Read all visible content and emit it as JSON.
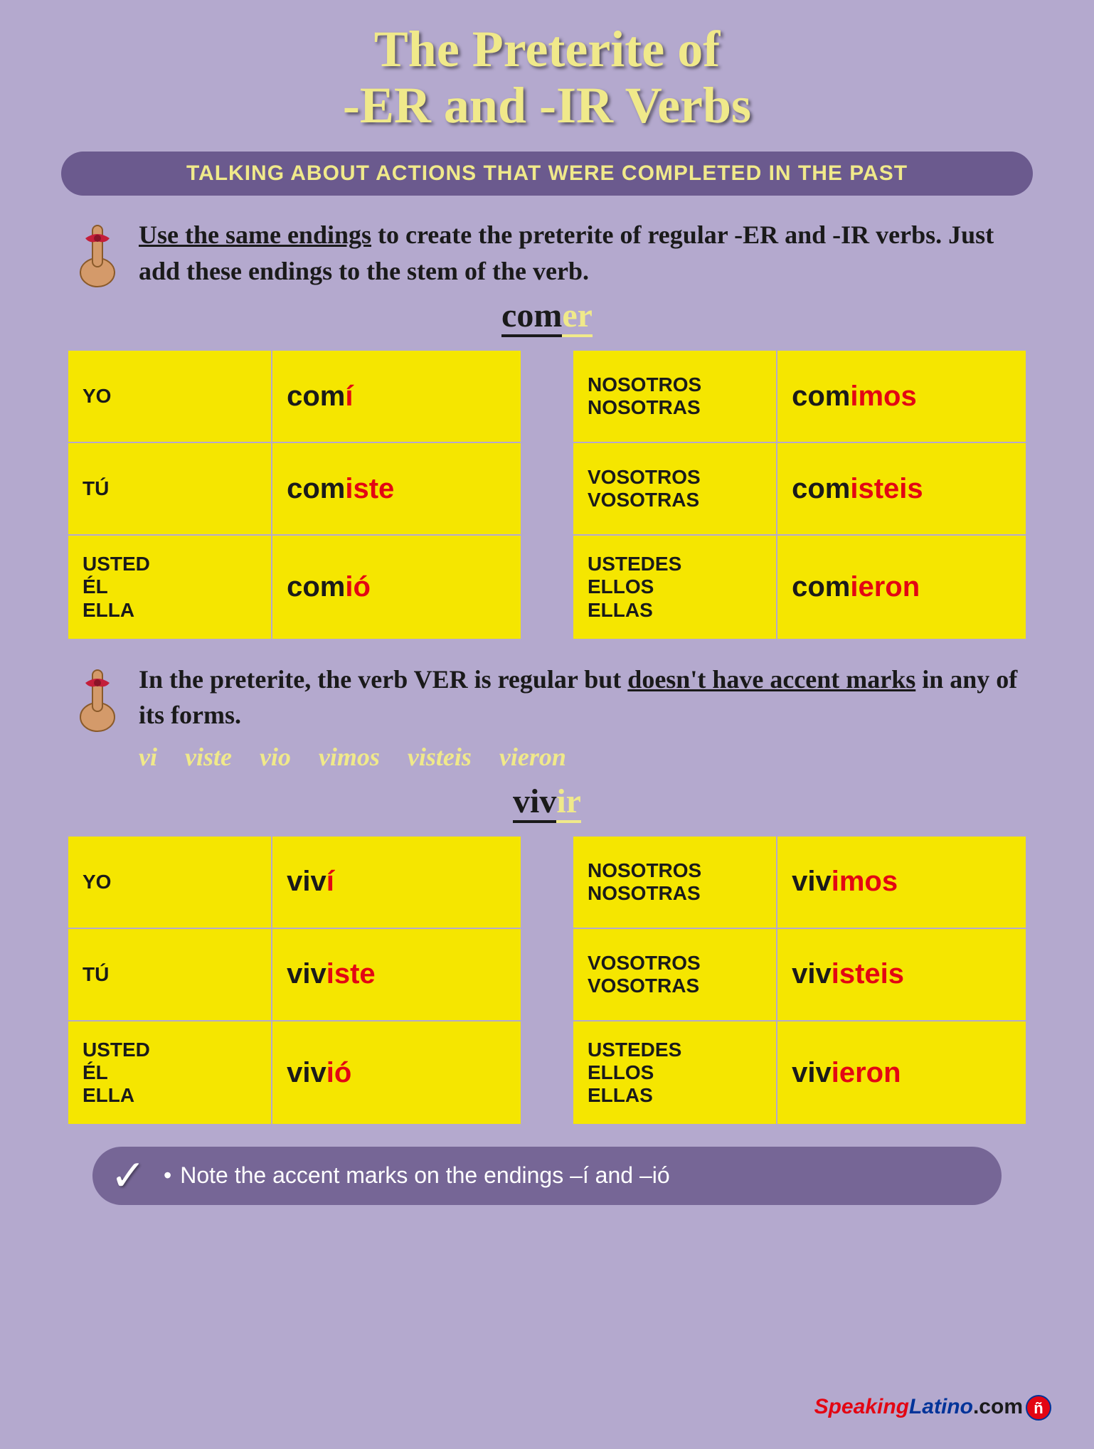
{
  "title_line1": "The Preterite of",
  "title_line2": "-ER and -IR Verbs",
  "subtitle": "TALKING ABOUT ACTIONS THAT WERE COMPLETED IN THE PAST",
  "tip1": {
    "underlined": "Use the same endings",
    "rest": " to create the preterite of regular -ER and -IR verbs. Just add these endings to the stem of the verb."
  },
  "verb1": {
    "stem": "com",
    "ending": "er"
  },
  "verb2": {
    "stem": "viv",
    "ending": "ir"
  },
  "pronouns_singular": [
    "YO",
    "TÚ",
    "USTED\nÉL\nELLA"
  ],
  "pronouns_plural": [
    "NOSOTROS\nNOSOTRAS",
    "VOSOTROS\nVOSOTRAS",
    "USTEDES\nELLOS\nELLAS"
  ],
  "comer_sg": [
    {
      "stem": "com",
      "end": "í"
    },
    {
      "stem": "com",
      "end": "iste"
    },
    {
      "stem": "com",
      "end": "ió"
    }
  ],
  "comer_pl": [
    {
      "stem": "com",
      "end": "imos"
    },
    {
      "stem": "com",
      "end": "isteis"
    },
    {
      "stem": "com",
      "end": "ieron"
    }
  ],
  "vivir_sg": [
    {
      "stem": "viv",
      "end": "í"
    },
    {
      "stem": "viv",
      "end": "iste"
    },
    {
      "stem": "viv",
      "end": "ió"
    }
  ],
  "vivir_pl": [
    {
      "stem": "viv",
      "end": "imos"
    },
    {
      "stem": "viv",
      "end": "isteis"
    },
    {
      "stem": "viv",
      "end": "ieron"
    }
  ],
  "tip2": {
    "part1": "In the preterite, the verb VER is regular but ",
    "underlined": "doesn't have accent marks",
    "part2": " in any of its forms."
  },
  "ver_forms": "vi  viste  vio  vimos  visteis  vieron",
  "note": "Note the accent marks on the endings –í and –ió",
  "logo": {
    "p1": "Speaking",
    "p2": "Latino",
    "p3": ".com",
    "bubble": "ñ"
  },
  "colors": {
    "background": "#b4a9ce",
    "yellow_cell": "#f5e600",
    "title_yellow": "#f0e98a",
    "pill_purple": "#6b5a8e",
    "note_purple": "#766696",
    "ending_red": "#e30613",
    "text_black": "#1a1a1a",
    "logo_blue": "#003399"
  }
}
